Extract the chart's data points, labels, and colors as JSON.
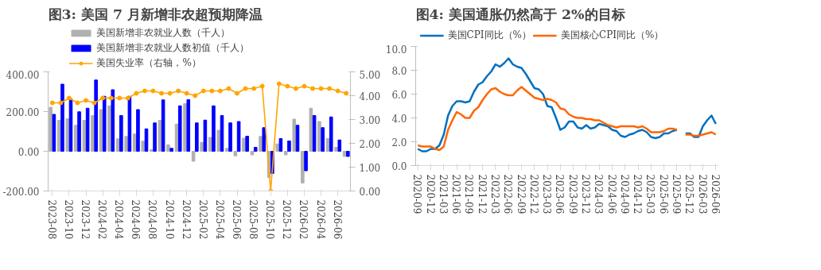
{
  "chart_data": [
    {
      "type": "bar",
      "title": "图3:  美国 7 月新增非农超预期降温",
      "legend": "top",
      "grid": false,
      "categories": [
        "2023-08",
        null,
        "2023-10",
        null,
        "2023-12",
        null,
        "2024-02",
        null,
        "2024-04",
        null,
        "2024-06",
        null,
        "2024-08",
        null,
        "2024-10",
        null,
        "2024-12",
        null,
        "2025-02",
        null,
        "2025-04",
        null,
        "2025-06",
        null,
        "2025-08",
        null,
        "2025-10",
        null,
        "2025-12",
        null,
        "2026-02",
        null,
        "2026-04",
        null,
        "2026-06",
        null
      ],
      "ylim": [
        -200,
        400
      ],
      "yticks": [
        {
          "value": -200,
          "label": "-200.00"
        },
        {
          "value": 0,
          "label": "0.00"
        },
        {
          "value": 200,
          "label": "200.00"
        },
        {
          "value": 400,
          "label": "400.00"
        }
      ],
      "y2lim": [
        0,
        5
      ],
      "y2ticks": [
        {
          "value": 0,
          "label": "0.00"
        },
        {
          "value": 1,
          "label": "1.00"
        },
        {
          "value": 2,
          "label": "2.00"
        },
        {
          "value": 3,
          "label": "3.00"
        },
        {
          "value": 4,
          "label": "4.00"
        },
        {
          "value": 5,
          "label": "5.00"
        }
      ],
      "series": [
        {
          "name": "美国新增非农就业人数（千人）",
          "type": "bar",
          "color": "#b0b0b0",
          "values": [
            222,
            156,
            164,
            131,
            156,
            180,
            210,
            229,
            63,
            75,
            87,
            51,
            8,
            156,
            33,
            137,
            240,
            -50,
            45,
            70,
            106,
            15,
            -23,
            66,
            -18,
            75,
            -132,
            37,
            -18,
            162,
            -160,
            217,
            150,
            64,
            20,
            -26
          ]
        },
        {
          "name": "美国新增非农就业人数初值（千人）",
          "type": "bar",
          "color": "#0000ff",
          "values": [
            186,
            338,
            263,
            199,
            217,
            359,
            277,
            310,
            180,
            277,
            210,
            113,
            143,
            259,
            15,
            229,
            260,
            143,
            157,
            229,
            180,
            143,
            150,
            76,
            20,
            119,
            -112,
            64,
            52,
            131,
            -98,
            180,
            119,
            173,
            57,
            -26
          ]
        },
        {
          "name": "美国失业率（右轴，%）",
          "type": "line",
          "axis": "y2",
          "marker": "circle",
          "color": "#ffa500",
          "values": [
            3.7,
            3.7,
            3.9,
            3.7,
            3.8,
            3.7,
            3.9,
            3.9,
            3.9,
            3.9,
            4.1,
            4.2,
            4.2,
            4.1,
            4.1,
            4.2,
            4.1,
            4.0,
            4.2,
            4.2,
            4.2,
            4.3,
            4.1,
            4.3,
            4.3,
            4.4,
            0.0,
            4.5,
            4.4,
            4.3,
            4.4,
            4.3,
            4.3,
            4.3,
            4.2,
            4.1
          ]
        }
      ]
    },
    {
      "type": "line",
      "title": "图4:  美国通胀仍然高于 2%的目标",
      "legend": "top",
      "grid": false,
      "categories": [
        "2020-09",
        null,
        null,
        "2020-12",
        null,
        null,
        "2021-03",
        null,
        null,
        "2021-06",
        null,
        null,
        "2021-09",
        null,
        null,
        "2021-12",
        null,
        null,
        "2022-03",
        null,
        null,
        "2022-06",
        null,
        null,
        "2022-09",
        null,
        null,
        "2022-12",
        null,
        null,
        "2023-03",
        null,
        null,
        "2023-06",
        null,
        null,
        "2023-09",
        null,
        null,
        "2023-12",
        null,
        null,
        "2024-03",
        null,
        null,
        "2024-06",
        null,
        null,
        "2024-09",
        null,
        null,
        "2024-12",
        null,
        null,
        "2025-03",
        null,
        null,
        "2025-06",
        null,
        null,
        "2025-09",
        null,
        null,
        "2025-12",
        null,
        null,
        "2026-03",
        null,
        null,
        "2026-06"
      ],
      "ylim": [
        0,
        10
      ],
      "yticks": [
        {
          "value": 0,
          "label": "0.0"
        },
        {
          "value": 2,
          "label": "2.0"
        },
        {
          "value": 4,
          "label": "4.0"
        },
        {
          "value": 6,
          "label": "6.0"
        },
        {
          "value": 8,
          "label": "8.0"
        },
        {
          "value": 10,
          "label": "10.0"
        }
      ],
      "series": [
        {
          "name": "美国CPI同比（%）",
          "color": "#0070c0",
          "values": [
            1.4,
            1.2,
            1.2,
            1.4,
            1.4,
            1.7,
            2.6,
            4.2,
            5.0,
            5.4,
            5.4,
            5.3,
            5.4,
            6.2,
            6.8,
            7.0,
            7.5,
            7.9,
            8.5,
            8.3,
            8.6,
            9.0,
            8.5,
            8.3,
            8.2,
            7.7,
            7.1,
            6.5,
            6.4,
            6.0,
            5.0,
            4.9,
            4.0,
            3.0,
            3.2,
            3.7,
            3.7,
            3.2,
            3.1,
            3.4,
            3.1,
            3.2,
            3.5,
            3.4,
            3.3,
            3.0,
            2.9,
            2.5,
            2.4,
            2.6,
            2.7,
            2.9,
            3.0,
            2.8,
            2.4,
            2.3,
            2.4,
            2.7,
            2.7,
            2.9,
            3.0,
            null,
            2.7,
            2.7,
            2.4,
            2.4,
            3.3,
            3.8,
            4.2,
            3.5
          ]
        },
        {
          "name": "美国核心CPI同比（%）",
          "color": "#ff6600",
          "values": [
            1.7,
            1.6,
            1.6,
            1.6,
            1.4,
            1.3,
            1.6,
            3.0,
            3.8,
            4.5,
            4.3,
            4.0,
            4.0,
            4.6,
            4.9,
            5.5,
            6.0,
            6.4,
            6.5,
            6.2,
            6.0,
            5.9,
            5.9,
            6.3,
            6.6,
            6.3,
            6.0,
            5.7,
            5.6,
            5.5,
            5.6,
            5.5,
            5.3,
            4.8,
            4.7,
            4.3,
            4.1,
            4.0,
            4.0,
            3.9,
            3.9,
            3.8,
            3.8,
            3.6,
            3.4,
            3.3,
            3.2,
            3.3,
            3.3,
            3.3,
            3.3,
            3.2,
            3.3,
            3.1,
            2.8,
            2.8,
            2.8,
            2.9,
            3.1,
            3.1,
            3.0,
            null,
            2.6,
            2.6,
            2.5,
            2.5,
            2.6,
            2.7,
            2.8,
            2.6
          ]
        }
      ]
    }
  ]
}
